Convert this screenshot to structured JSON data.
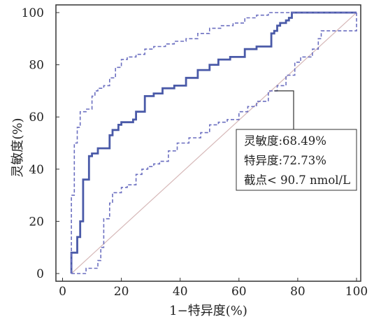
{
  "chart_data": {
    "type": "line",
    "xlabel": "1−特异度(%)",
    "ylabel": "灵敏度(%)",
    "xlim": [
      0,
      100
    ],
    "ylim": [
      0,
      100
    ],
    "x_ticks": [
      "0",
      "20",
      "40",
      "60",
      "80",
      "100"
    ],
    "y_ticks": [
      "0",
      "20",
      "40",
      "60",
      "80",
      "100"
    ],
    "grid": false,
    "annotation": {
      "lines": [
        "灵敏度:68.49%",
        "特异度:72.73%",
        "截点< 90.7 nmol/L"
      ],
      "points_to": {
        "x": 72,
        "y": 70
      }
    },
    "series": [
      {
        "style": "solid",
        "color": "#4a5aa8",
        "x": [
          3,
          3,
          5,
          5,
          6,
          6,
          7,
          7,
          9,
          9,
          10,
          10,
          12,
          12,
          16,
          16,
          17,
          17,
          19,
          19,
          20,
          20,
          24,
          24,
          25,
          25,
          28,
          28,
          31,
          31,
          34,
          34,
          38,
          38,
          42,
          42,
          46,
          46,
          50,
          50,
          53,
          53,
          57,
          57,
          62,
          62,
          66,
          66,
          71,
          71,
          72,
          72,
          73,
          73,
          74,
          74,
          76,
          76,
          77,
          77,
          78,
          78,
          100
        ],
        "y": [
          0,
          8,
          8,
          14,
          14,
          20,
          20,
          36,
          36,
          45,
          45,
          46,
          46,
          48,
          48,
          53,
          53,
          55,
          55,
          57,
          57,
          58,
          58,
          59,
          59,
          62,
          62,
          68,
          68,
          69,
          69,
          71,
          71,
          72,
          72,
          75,
          75,
          78,
          78,
          80,
          80,
          82,
          82,
          83,
          83,
          86,
          86,
          87,
          87,
          92,
          92,
          93,
          93,
          95,
          95,
          96,
          96,
          97,
          97,
          98,
          98,
          100,
          100
        ]
      },
      {
        "style": "dashed",
        "color": "#6b6fc0",
        "name": "upper",
        "x": [
          3,
          3,
          4,
          4,
          5,
          5,
          6,
          6,
          8,
          8,
          10,
          10,
          11,
          11,
          12,
          12,
          14,
          14,
          16,
          16,
          18,
          18,
          20,
          20,
          22,
          22,
          25,
          25,
          28,
          28,
          31,
          31,
          35,
          35,
          38,
          38,
          42,
          42,
          46,
          46,
          50,
          50,
          54,
          54,
          58,
          58,
          62,
          62,
          66,
          66,
          70,
          70,
          75,
          75,
          79,
          79,
          100
        ],
        "y": [
          0,
          30,
          30,
          50,
          50,
          56,
          56,
          62,
          62,
          63,
          63,
          68,
          68,
          70,
          70,
          71,
          71,
          72,
          72,
          75,
          75,
          79,
          79,
          82,
          82,
          83,
          83,
          84,
          84,
          86,
          86,
          87,
          87,
          88,
          88,
          89,
          89,
          90,
          90,
          92,
          92,
          94,
          94,
          95,
          95,
          96,
          96,
          98,
          98,
          99,
          99,
          100,
          100,
          100,
          100,
          100,
          100
        ]
      },
      {
        "style": "dashed",
        "color": "#6b6fc0",
        "name": "lower",
        "x": [
          3,
          3,
          8,
          8,
          12,
          12,
          13,
          13,
          14,
          14,
          16,
          16,
          17,
          17,
          20,
          20,
          22,
          22,
          25,
          25,
          27,
          27,
          29,
          29,
          31,
          31,
          33,
          33,
          36,
          36,
          39,
          39,
          43,
          43,
          47,
          47,
          50,
          50,
          53,
          53,
          56,
          56,
          60,
          60,
          63,
          63,
          66,
          66,
          70,
          70,
          73,
          73,
          76,
          76,
          79,
          79,
          81,
          81,
          85,
          85,
          87,
          87,
          88,
          88,
          100,
          100
        ],
        "y": [
          0,
          0,
          0,
          2,
          2,
          5,
          5,
          10,
          10,
          21,
          21,
          27,
          27,
          31,
          31,
          33,
          33,
          34,
          34,
          38,
          38,
          40,
          40,
          41,
          41,
          42,
          42,
          43,
          43,
          47,
          47,
          50,
          50,
          52,
          52,
          54,
          54,
          57,
          57,
          58,
          58,
          59,
          59,
          62,
          62,
          64,
          64,
          66,
          66,
          70,
          70,
          72,
          72,
          76,
          76,
          81,
          81,
          83,
          83,
          86,
          86,
          90,
          90,
          93,
          93,
          100
        ]
      }
    ]
  }
}
